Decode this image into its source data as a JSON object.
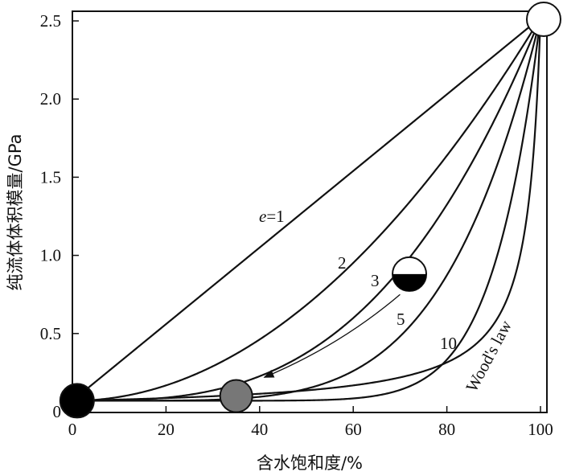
{
  "chart_data": {
    "type": "line",
    "xlabel": "含水饱和度/%",
    "ylabel": "纯流体体积模量/GPa",
    "xlim": [
      0,
      100
    ],
    "ylim": [
      0,
      2.55
    ],
    "xticks": [
      0,
      20,
      40,
      60,
      80,
      100
    ],
    "yticks": [
      0,
      0.5,
      1.0,
      1.5,
      2.0,
      2.5
    ],
    "ytick_labels": [
      "0",
      "0.5",
      "1.0",
      "1.5",
      "2.0",
      "2.5"
    ],
    "endpoint_gas_GPa": 0.07,
    "endpoint_water_GPa": 2.52,
    "series": [
      {
        "label": "e=1",
        "label_prefix": "e",
        "label_suffix": "=1",
        "exponent": 1
      },
      {
        "label": "2",
        "exponent": 2
      },
      {
        "label": "3",
        "exponent": 3
      },
      {
        "label": "5",
        "exponent": 5
      },
      {
        "label": "10",
        "exponent": 10
      },
      {
        "label": "Wood's law",
        "exponent": null
      }
    ],
    "markers": [
      {
        "name": "gas",
        "x": 1,
        "y": 0.07,
        "fill": "#000000"
      },
      {
        "name": "mixed",
        "x": 35,
        "y": 0.1,
        "fill": "#777777"
      },
      {
        "name": "half",
        "x": 72,
        "y": 0.88,
        "fill": "half"
      },
      {
        "name": "water",
        "x": 100,
        "y": 2.52,
        "fill": "#ffffff"
      }
    ],
    "arrow": {
      "from": [
        70,
        0.75
      ],
      "to": [
        41,
        0.22
      ]
    }
  }
}
